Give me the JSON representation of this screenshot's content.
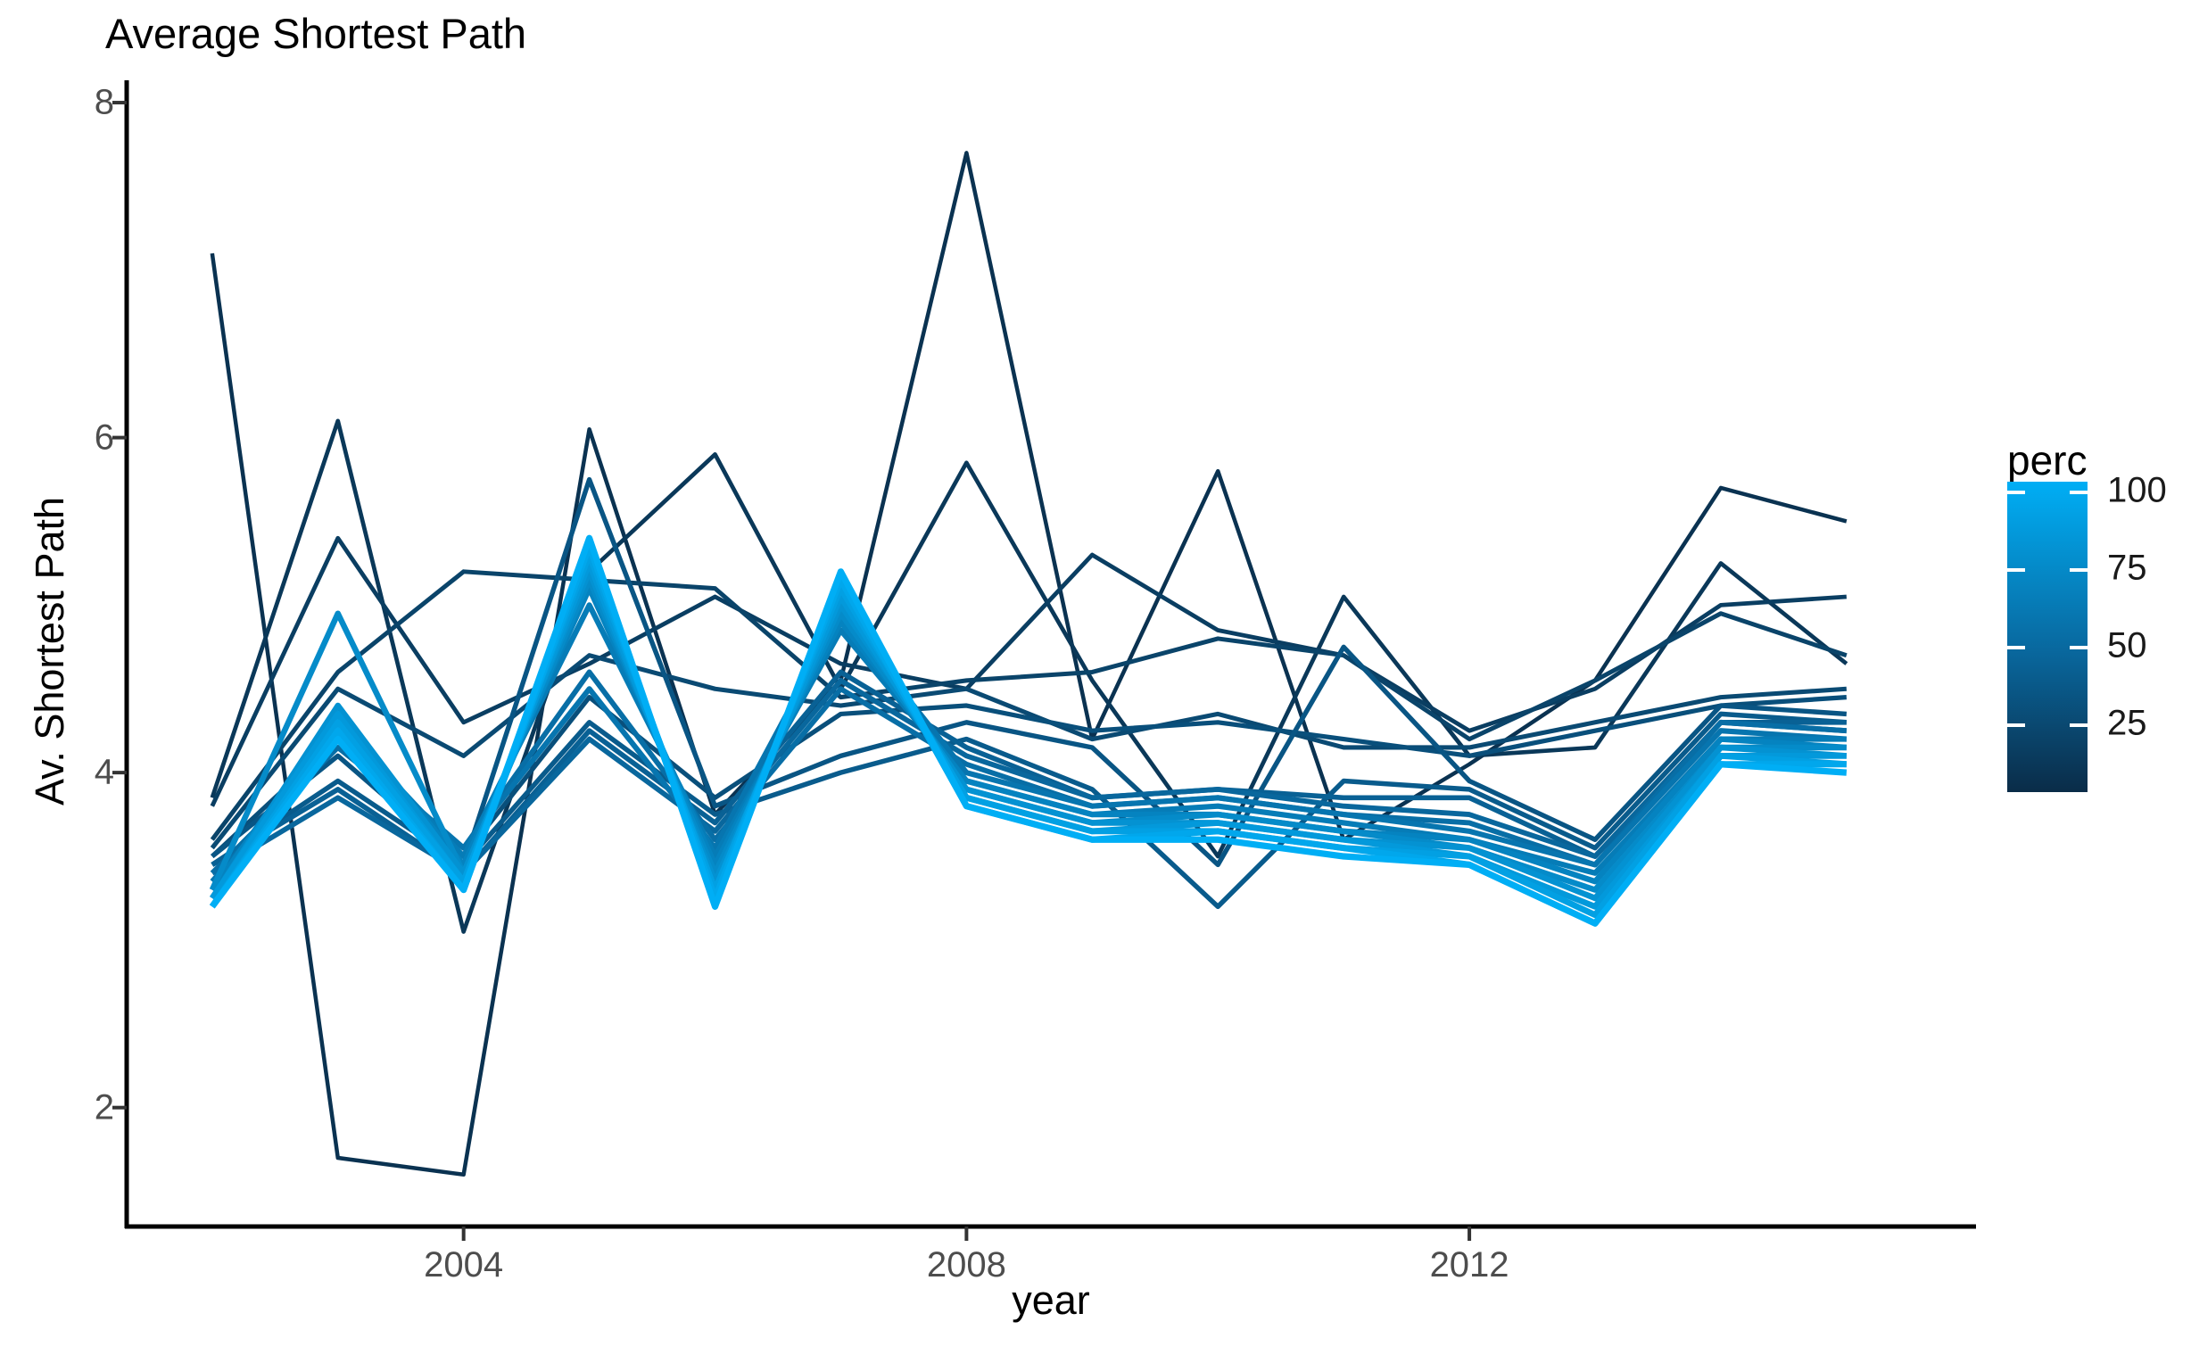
{
  "title": "Average Shortest Path",
  "chart_data": {
    "type": "line",
    "title": "Average Shortest Path",
    "xlabel": "year",
    "ylabel": "Av. Shortest Path",
    "x": [
      2002,
      2003,
      2004,
      2005,
      2006,
      2007,
      2008,
      2009,
      2010,
      2011,
      2012,
      2013,
      2014,
      2015
    ],
    "x_ticks": [
      2004,
      2008,
      2012
    ],
    "y_ticks": [
      2,
      4,
      6,
      8
    ],
    "xlim": [
      2001.32,
      2016.03
    ],
    "ylim": [
      1.29,
      8.16
    ],
    "grid": "off",
    "legend": {
      "title": "perc",
      "position": "right",
      "ticks": [
        100,
        75,
        50,
        25
      ],
      "color_domain": [
        0,
        100
      ],
      "gradient_low": "#0A2C48",
      "gradient_mid": "#09679D",
      "gradient_high": "#00AEF5"
    },
    "series": [
      {
        "name": "perc 5",
        "perc": 5,
        "values": [
          7.1,
          1.7,
          1.6,
          6.05,
          3.75,
          4.55,
          7.7,
          4.2,
          5.8,
          3.6,
          4.05,
          4.55,
          5.7,
          5.5
        ]
      },
      {
        "name": "perc 10",
        "perc": 10,
        "values": [
          3.85,
          6.1,
          3.05,
          5.2,
          5.9,
          4.5,
          5.85,
          4.55,
          3.5,
          5.05,
          4.1,
          4.15,
          5.25,
          4.65
        ]
      },
      {
        "name": "perc 15",
        "perc": 15,
        "values": [
          3.8,
          5.4,
          4.3,
          4.65,
          5.05,
          4.65,
          4.5,
          5.3,
          4.85,
          4.7,
          4.25,
          4.5,
          5.0,
          5.05
        ]
      },
      {
        "name": "perc 20",
        "perc": 20,
        "values": [
          3.6,
          4.6,
          5.2,
          5.15,
          5.1,
          4.45,
          4.55,
          4.6,
          4.8,
          4.7,
          4.2,
          4.55,
          4.95,
          4.7
        ]
      },
      {
        "name": "perc 25",
        "perc": 25,
        "values": [
          3.55,
          4.5,
          4.1,
          4.7,
          4.5,
          4.4,
          4.5,
          4.2,
          4.35,
          4.15,
          4.15,
          4.3,
          4.45,
          4.5
        ]
      },
      {
        "name": "perc 30",
        "perc": 30,
        "values": [
          3.5,
          4.2,
          3.5,
          4.45,
          3.85,
          4.35,
          4.4,
          4.25,
          4.3,
          4.2,
          4.1,
          4.25,
          4.4,
          4.45
        ]
      },
      {
        "name": "perc 35",
        "perc": 35,
        "values": [
          3.5,
          4.1,
          3.45,
          5.75,
          3.8,
          4.1,
          4.3,
          4.15,
          3.45,
          4.75,
          3.95,
          3.6,
          4.4,
          4.35
        ]
      },
      {
        "name": "perc 40",
        "perc": 40,
        "values": [
          3.45,
          3.95,
          3.45,
          4.3,
          3.75,
          4.0,
          4.2,
          3.9,
          3.2,
          3.95,
          3.9,
          3.55,
          4.35,
          4.3
        ]
      },
      {
        "name": "perc 45",
        "perc": 45,
        "values": [
          3.45,
          3.9,
          3.4,
          4.25,
          3.7,
          4.6,
          4.15,
          3.85,
          3.9,
          3.85,
          3.85,
          3.5,
          4.3,
          4.3
        ]
      },
      {
        "name": "perc 50",
        "perc": 50,
        "values": [
          3.4,
          3.85,
          3.4,
          4.2,
          3.65,
          4.55,
          4.1,
          3.85,
          3.9,
          3.8,
          3.75,
          3.5,
          4.3,
          4.25
        ]
      },
      {
        "name": "perc 55",
        "perc": 55,
        "values": [
          3.4,
          4.15,
          3.55,
          4.6,
          3.6,
          4.5,
          4.05,
          3.8,
          3.85,
          3.75,
          3.7,
          3.45,
          4.3,
          4.25
        ]
      },
      {
        "name": "perc 60",
        "perc": 60,
        "values": [
          3.35,
          4.2,
          3.55,
          4.5,
          3.55,
          4.95,
          4.0,
          3.8,
          3.85,
          3.75,
          3.65,
          3.45,
          4.25,
          4.2
        ]
      },
      {
        "name": "perc 65",
        "perc": 65,
        "values": [
          3.3,
          4.3,
          3.5,
          5.0,
          3.5,
          4.85,
          3.95,
          3.75,
          3.8,
          3.7,
          3.6,
          3.4,
          4.2,
          4.2
        ]
      },
      {
        "name": "perc 70",
        "perc": 70,
        "values": [
          3.3,
          4.35,
          3.45,
          5.1,
          3.45,
          4.9,
          3.95,
          3.75,
          3.75,
          3.65,
          3.6,
          3.35,
          4.2,
          4.15
        ]
      },
      {
        "name": "perc 75",
        "perc": 75,
        "values": [
          3.3,
          4.95,
          3.4,
          5.15,
          3.4,
          4.95,
          3.9,
          3.7,
          3.75,
          3.65,
          3.55,
          3.3,
          4.15,
          4.15
        ]
      },
      {
        "name": "perc 80",
        "perc": 80,
        "values": [
          3.25,
          4.4,
          3.4,
          5.2,
          3.35,
          5.0,
          3.9,
          3.7,
          3.7,
          3.6,
          3.55,
          3.25,
          4.15,
          4.1
        ]
      },
      {
        "name": "perc 85",
        "perc": 85,
        "values": [
          3.25,
          4.35,
          3.35,
          5.25,
          3.3,
          5.05,
          3.85,
          3.65,
          3.7,
          3.6,
          3.5,
          3.2,
          4.1,
          4.1
        ]
      },
      {
        "name": "perc 90",
        "perc": 90,
        "values": [
          3.2,
          4.3,
          3.35,
          5.3,
          3.3,
          5.1,
          3.85,
          3.65,
          3.65,
          3.55,
          3.5,
          3.15,
          4.1,
          4.05
        ]
      },
      {
        "name": "perc 95",
        "perc": 95,
        "values": [
          3.2,
          4.25,
          3.3,
          5.35,
          3.25,
          5.15,
          3.8,
          3.6,
          3.65,
          3.55,
          3.45,
          3.1,
          4.05,
          4.05
        ]
      },
      {
        "name": "perc 100",
        "perc": 100,
        "values": [
          3.2,
          4.2,
          3.3,
          5.4,
          3.2,
          5.2,
          3.8,
          3.6,
          3.6,
          3.5,
          3.45,
          3.1,
          4.05,
          4.0
        ]
      }
    ]
  },
  "axis_style": {
    "axis_color": "#000000",
    "tick_color": "#333333",
    "tick_label_color": "#4d4d4d"
  }
}
